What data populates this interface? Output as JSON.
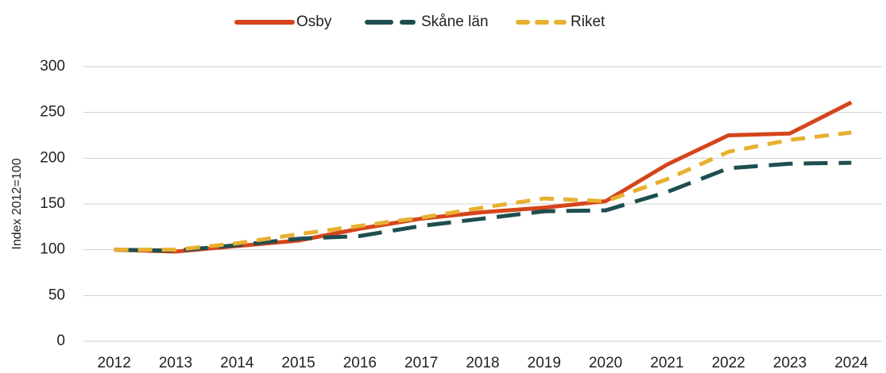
{
  "chart_data": {
    "type": "line",
    "categories": [
      "2012",
      "2013",
      "2014",
      "2015",
      "2016",
      "2017",
      "2018",
      "2019",
      "2020",
      "2021",
      "2022",
      "2023",
      "2024"
    ],
    "series": [
      {
        "name": "Osby",
        "color": "#d5451b",
        "dash": false,
        "values": [
          100,
          98,
          104,
          110,
          123,
          134,
          141,
          146,
          153,
          193,
          225,
          227,
          261
        ]
      },
      {
        "name": "Skåne län",
        "color": "#1f4e4f",
        "dash": true,
        "values": [
          100,
          99,
          105,
          112,
          115,
          126,
          134,
          142,
          143,
          163,
          189,
          194,
          195
        ]
      },
      {
        "name": "Riket",
        "color": "#e8b030",
        "dash": true,
        "values": [
          100,
          100,
          107,
          117,
          126,
          135,
          146,
          156,
          153,
          177,
          207,
          220,
          228
        ]
      }
    ],
    "y_label": "Index 2012=100",
    "ylim": [
      0,
      300
    ],
    "yticks": [
      0,
      50,
      100,
      150,
      200,
      250,
      300
    ],
    "grid": true,
    "legend": "top"
  }
}
